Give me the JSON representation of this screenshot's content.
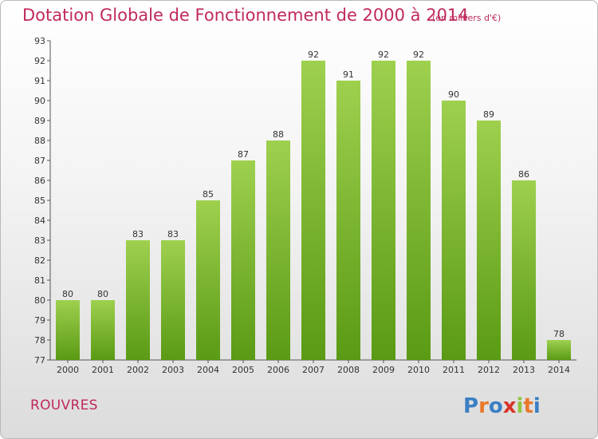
{
  "header": {
    "title": "Dotation Globale de Fonctionnement de 2000 à 2014",
    "subtitle": "(en milliers d'€)"
  },
  "footer": {
    "commune": "ROUVRES",
    "logo_text": "Proxiti"
  },
  "colors": {
    "accent": "#c0295e",
    "bar_top": "#9ed04e",
    "bar_bottom": "#5a9a14"
  },
  "chart_data": {
    "type": "bar",
    "title": "Dotation Globale de Fonctionnement de 2000 à 2014",
    "subtitle": "(en milliers d'€)",
    "categories": [
      "2000",
      "2001",
      "2002",
      "2003",
      "2004",
      "2005",
      "2006",
      "2007",
      "2008",
      "2009",
      "2010",
      "2011",
      "2012",
      "2013",
      "2014"
    ],
    "values": [
      80,
      80,
      83,
      83,
      85,
      87,
      88,
      92,
      91,
      92,
      92,
      90,
      89,
      86,
      78
    ],
    "xlabel": "",
    "ylabel": "",
    "ylim": [
      77,
      93
    ],
    "yticks": [
      77,
      78,
      79,
      80,
      81,
      82,
      83,
      84,
      85,
      86,
      87,
      88,
      89,
      90,
      91,
      92,
      93
    ],
    "grid": false,
    "legend": "none"
  }
}
